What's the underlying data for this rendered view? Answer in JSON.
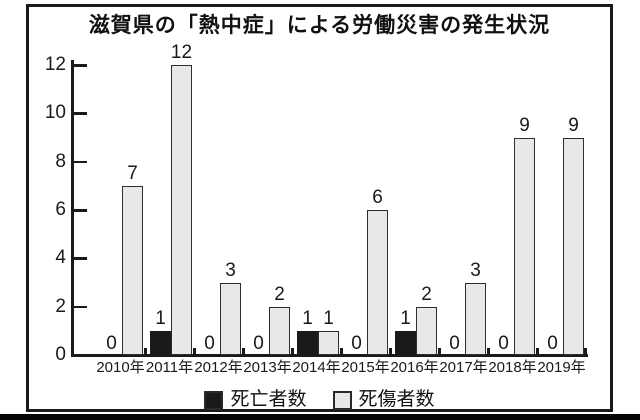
{
  "page": {
    "background": "#ffffff",
    "frame_border_color": "#1a1a1a",
    "bottom_rule_color": "#050505"
  },
  "chart_data": {
    "type": "bar",
    "title": "滋賀県の「熱中症」による労働災害の発生状況",
    "categories": [
      "2010年",
      "2011年",
      "2012年",
      "2013年",
      "2014年",
      "2015年",
      "2016年",
      "2017年",
      "2018年",
      "2019年"
    ],
    "series": [
      {
        "name": "死亡者数",
        "color": "#1a1a1a",
        "border_color": "#1a1a1a",
        "values": [
          0,
          1,
          0,
          0,
          1,
          0,
          1,
          0,
          0,
          0
        ]
      },
      {
        "name": "死傷者数",
        "color": "#e8e8e8",
        "border_color": "#2e2e2e",
        "values": [
          7,
          12,
          3,
          2,
          1,
          6,
          2,
          3,
          9,
          9
        ]
      }
    ],
    "xlabel": "",
    "ylabel": "",
    "ylim": [
      0,
      12
    ],
    "yticks": [
      0,
      2,
      4,
      6,
      8,
      10,
      12
    ],
    "grid": false,
    "bar_value_labels": true,
    "legend_position": "bottom"
  }
}
